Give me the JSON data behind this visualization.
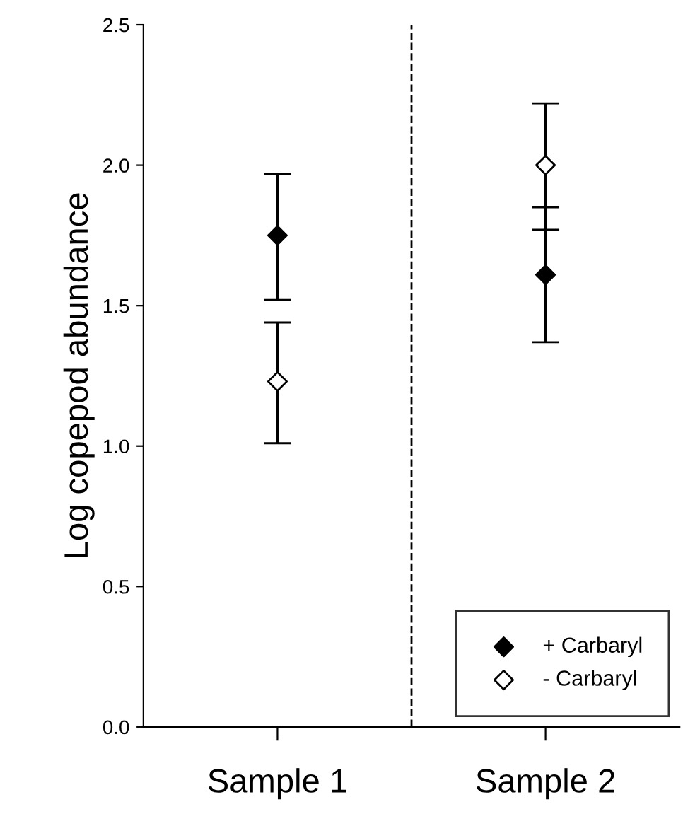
{
  "chart_data": {
    "type": "scatter",
    "ylabel": "Log copepod abundance",
    "categories": [
      "Sample 1",
      "Sample 2"
    ],
    "ylim": [
      0,
      2.5
    ],
    "yticks": [
      {
        "value": 0,
        "label": "0.0"
      },
      {
        "value": 0.5,
        "label": "0.5"
      },
      {
        "value": 1,
        "label": "1.0"
      },
      {
        "value": 1.5,
        "label": "1.5"
      },
      {
        "value": 2,
        "label": "2.0"
      },
      {
        "value": 2.5,
        "label": "2.5"
      }
    ],
    "series": [
      {
        "name": "+ Carbaryl",
        "color": "#000000",
        "values": [
          1.75,
          1.61
        ],
        "errors": [
          [
            1.52,
            1.97
          ],
          [
            1.37,
            1.85
          ]
        ]
      },
      {
        "name": "- Carbaryl",
        "color": "#ffffff",
        "values": [
          1.23,
          2.0
        ],
        "errors": [
          [
            1.01,
            1.44
          ],
          [
            1.77,
            2.22
          ]
        ]
      }
    ],
    "marker": "diamond",
    "legend": "bottom right",
    "grid": false
  }
}
